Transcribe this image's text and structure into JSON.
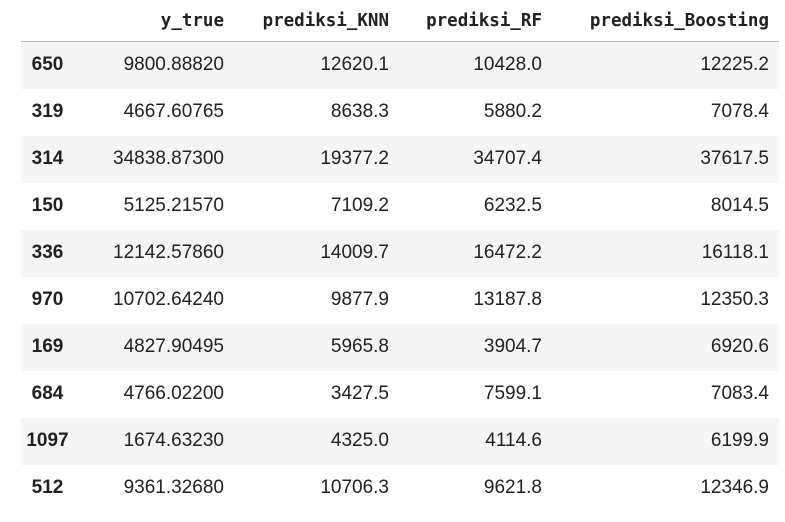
{
  "table": {
    "columns": [
      "",
      "y_true",
      "prediksi_KNN",
      "prediksi_RF",
      "prediksi_Boosting"
    ],
    "rows": [
      {
        "index": "650",
        "cells": [
          "9800.88820",
          "12620.1",
          "10428.0",
          "12225.2"
        ]
      },
      {
        "index": "319",
        "cells": [
          "4667.60765",
          "8638.3",
          "5880.2",
          "7078.4"
        ]
      },
      {
        "index": "314",
        "cells": [
          "34838.87300",
          "19377.2",
          "34707.4",
          "37617.5"
        ]
      },
      {
        "index": "150",
        "cells": [
          "5125.21570",
          "7109.2",
          "6232.5",
          "8014.5"
        ]
      },
      {
        "index": "336",
        "cells": [
          "12142.57860",
          "14009.7",
          "16472.2",
          "16118.1"
        ]
      },
      {
        "index": "970",
        "cells": [
          "10702.64240",
          "9877.9",
          "13187.8",
          "12350.3"
        ]
      },
      {
        "index": "169",
        "cells": [
          "4827.90495",
          "5965.8",
          "3904.7",
          "6920.6"
        ]
      },
      {
        "index": "684",
        "cells": [
          "4766.02200",
          "3427.5",
          "7599.1",
          "7083.4"
        ]
      },
      {
        "index": "1097",
        "cells": [
          "1674.63230",
          "4325.0",
          "4114.6",
          "6199.9"
        ]
      },
      {
        "index": "512",
        "cells": [
          "9361.32680",
          "10706.3",
          "9621.8",
          "12346.9"
        ]
      }
    ]
  },
  "colors": {
    "text": "#212121",
    "stripe": "#f5f5f5",
    "header_border": "#bdbdbd"
  }
}
